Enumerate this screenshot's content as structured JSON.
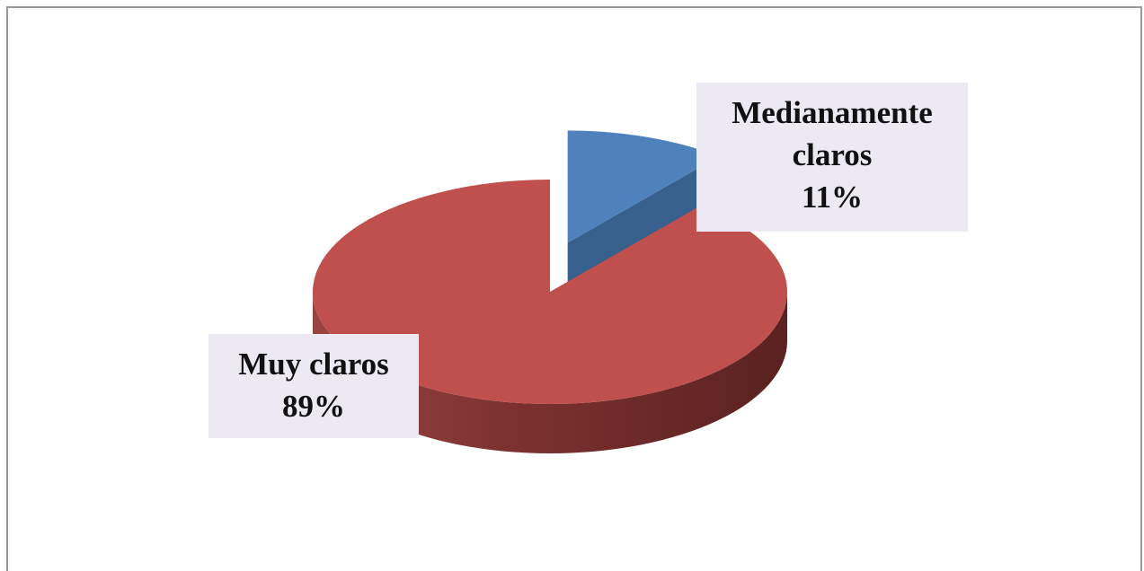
{
  "chart_data": {
    "type": "pie3d",
    "categories": [
      "Medianamente claros",
      "Muy claros"
    ],
    "values": [
      11,
      89
    ],
    "value_labels": [
      "11%",
      "89%"
    ],
    "colors": [
      "#4f81bd",
      "#c0504d"
    ]
  }
}
